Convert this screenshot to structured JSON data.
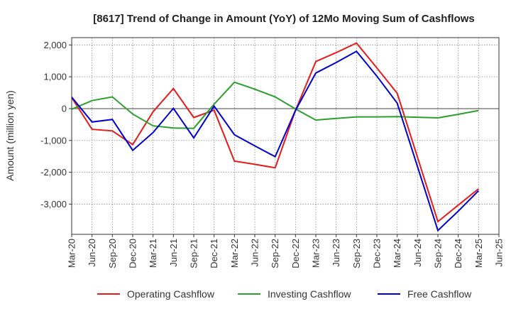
{
  "chart_data": {
    "type": "line",
    "title": "[8617]  Trend of Change in Amount (YoY) of 12Mo Moving Sum of Cashflows",
    "xlabel": "",
    "ylabel": "Amount (million yen)",
    "ylim": [
      -3950,
      2230
    ],
    "yticks": [
      2000,
      1000,
      0,
      -1000,
      -2000,
      -3000
    ],
    "ytick_labels": [
      "2,000",
      "1,000",
      "0",
      "-1,000",
      "-2,000",
      "-3,000"
    ],
    "categories": [
      "Mar-20",
      "Jun-20",
      "Sep-20",
      "Dec-20",
      "Mar-21",
      "Jun-21",
      "Sep-21",
      "Dec-21",
      "Mar-22",
      "Jun-22",
      "Sep-22",
      "Dec-22",
      "Mar-23",
      "Jun-23",
      "Sep-23",
      "Dec-23",
      "Mar-24",
      "Jun-24",
      "Sep-24",
      "Dec-24",
      "Mar-25",
      "Jun-25"
    ],
    "grid": true,
    "legend": "bottom",
    "series": [
      {
        "name": "Operating Cashflow",
        "color": "#e41a1c",
        "values": [
          350,
          -650,
          -700,
          -1130,
          -100,
          630,
          -280,
          -50,
          -1650,
          -1750,
          -1860,
          -60,
          1480,
          1760,
          2060,
          1280,
          480,
          null,
          -3550,
          -3030,
          -2520,
          null
        ]
      },
      {
        "name": "Investing Cashflow",
        "color": "#2ca02c",
        "values": [
          -20,
          250,
          370,
          -170,
          -540,
          -610,
          -620,
          140,
          830,
          610,
          370,
          -10,
          -360,
          -310,
          -260,
          -260,
          -250,
          null,
          -290,
          -180,
          -60,
          null
        ]
      },
      {
        "name": "Free Cashflow",
        "color": "#0000cc",
        "values": [
          360,
          -420,
          -340,
          -1310,
          -750,
          10,
          -920,
          80,
          -820,
          -1170,
          -1510,
          -60,
          1120,
          1450,
          1800,
          1020,
          170,
          null,
          -3830,
          -3220,
          -2580,
          null
        ]
      }
    ]
  }
}
